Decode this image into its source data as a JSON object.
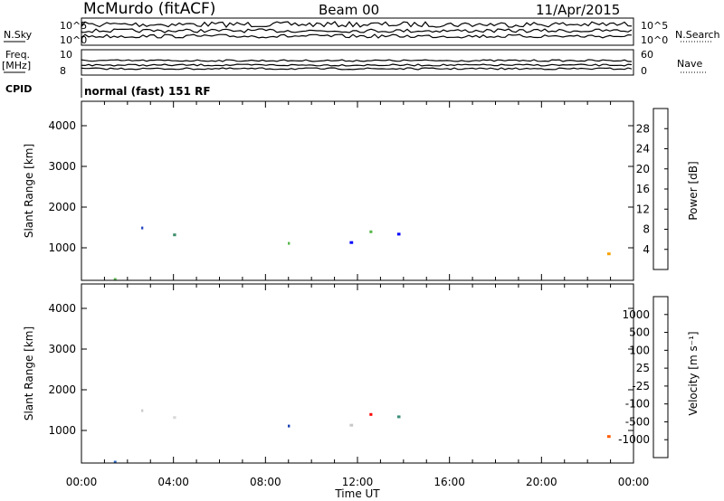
{
  "header": {
    "station": "McMurdo (fitACF)",
    "beam": "Beam 00",
    "date": "11/Apr/2015"
  },
  "strip_panels": {
    "nsky_label": "N.Sky",
    "nsky_ticks": [
      "10^5",
      "10^0"
    ],
    "nsearch_label": "N.Search",
    "freq_label_1": "Freq.",
    "freq_label_2": "[MHz]",
    "freq_ticks": [
      "10",
      "8"
    ],
    "nave_label": "Nave",
    "nave_ticks": [
      "60",
      "0"
    ],
    "cpid_label": "CPID",
    "mode_text": "normal (fast) 151 RF"
  },
  "colors": {
    "power_scale": [
      "#0000ff",
      "#1f3fbf",
      "#2d5fa8",
      "#3c8f6a",
      "#55b74a",
      "#e4e800",
      "#f5a300",
      "#ff6a00",
      "#ff0000"
    ],
    "velocity_scale": [
      "#1a3fb5",
      "#2a66c4",
      "#3c8f7a",
      "#6abf3a",
      "#c8c8c8",
      "#d8d8d8",
      "#ff9800",
      "#ff5a00",
      "#ff0000"
    ]
  },
  "chart_data": [
    {
      "type": "heatmap",
      "panel": "power",
      "title": "",
      "xlabel": "",
      "ylabel": "Slant Range [km]",
      "xlim": [
        "00:00",
        "00:00"
      ],
      "ylim": [
        200,
        4600
      ],
      "y_ticks": [
        1000,
        2000,
        3000,
        4000
      ],
      "colorbar_label": "Power [dB]",
      "colorbar_ticks": [
        4,
        8,
        12,
        16,
        20,
        24,
        28
      ],
      "colorbar_range": [
        0,
        32
      ]
    },
    {
      "type": "heatmap",
      "panel": "velocity",
      "title": "",
      "xlabel": "Time UT",
      "ylabel": "Slant Range [km]",
      "x_ticks": [
        "00:00",
        "04:00",
        "08:00",
        "12:00",
        "16:00",
        "20:00",
        "00:00"
      ],
      "y_ticks": [
        1000,
        2000,
        3000,
        4000
      ],
      "ylim": [
        200,
        4600
      ],
      "colorbar_label": "Velocity [m s⁻¹]",
      "colorbar_ticks": [
        "1000",
        "500",
        "100",
        "25",
        "-25",
        "-100",
        "-500",
        "-1000"
      ]
    }
  ]
}
